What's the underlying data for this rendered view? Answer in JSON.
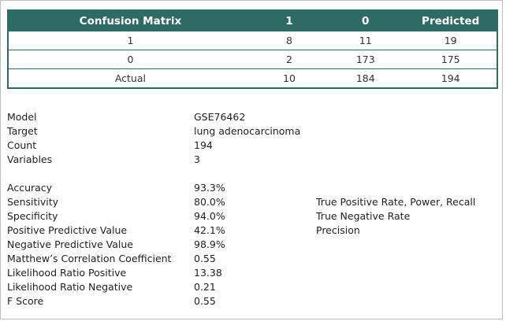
{
  "confusion_matrix": {
    "headers": [
      "Confusion Matrix",
      "1",
      "0",
      "Predicted"
    ],
    "rows": [
      [
        "1",
        "8",
        "11",
        "19"
      ],
      [
        "0",
        "2",
        "173",
        "175"
      ],
      [
        "Actual",
        "10",
        "184",
        "194"
      ]
    ]
  },
  "info": [
    {
      "label": "Model",
      "value": "GSE76462"
    },
    {
      "label": "Target",
      "value": "lung adenocarcinoma"
    },
    {
      "label": "Count",
      "value": "194"
    },
    {
      "label": "Variables",
      "value": "3"
    }
  ],
  "metrics": [
    {
      "label": "Accuracy",
      "value": "93.3%",
      "note": ""
    },
    {
      "label": "Sensitivity",
      "value": "80.0%",
      "note": "True Positive Rate, Power, Recall"
    },
    {
      "label": "Specificity",
      "value": "94.0%",
      "note": "True Negative Rate"
    },
    {
      "label": "Positive Predictive Value",
      "value": "42.1%",
      "note": "Precision"
    },
    {
      "label": "Negative Predictive Value",
      "value": "98.9%",
      "note": ""
    },
    {
      "label": "Matthew’s Correlation Coefficient",
      "value": "0.55",
      "note": ""
    },
    {
      "label": "Likelihood Ratio Positive",
      "value": "13.38",
      "note": ""
    },
    {
      "label": "Likelihood Ratio Negative",
      "value": "0.21",
      "note": ""
    },
    {
      "label": "F Score",
      "value": "0.55",
      "note": ""
    }
  ],
  "colors": {
    "header_bg": "#2f6b65",
    "header_text": "#ffffff"
  }
}
